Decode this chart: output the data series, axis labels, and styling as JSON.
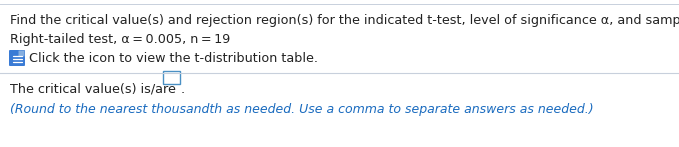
{
  "line1": "Find the critical value(s) and rejection region(s) for the indicated t-test, level of significance α, and sample size n.",
  "line2": "Right-tailed test, α = 0.005, n = 19",
  "line3": "Click the icon to view the t-distribution table.",
  "line4_prefix": "The critical value(s) is/are",
  "line5": "(Round to the nearest thousandth as needed. Use a comma to separate answers as needed.)",
  "bg_color": "#ffffff",
  "text_color_black": "#222222",
  "text_color_blue": "#1a6bbf",
  "border_color": "#c8d0dc",
  "divider_color": "#c8d0dc",
  "icon_body_color": "#3a7bd5",
  "icon_fold_color": "#85aee0",
  "font_size_main": 9.2,
  "font_size_small": 9.0
}
